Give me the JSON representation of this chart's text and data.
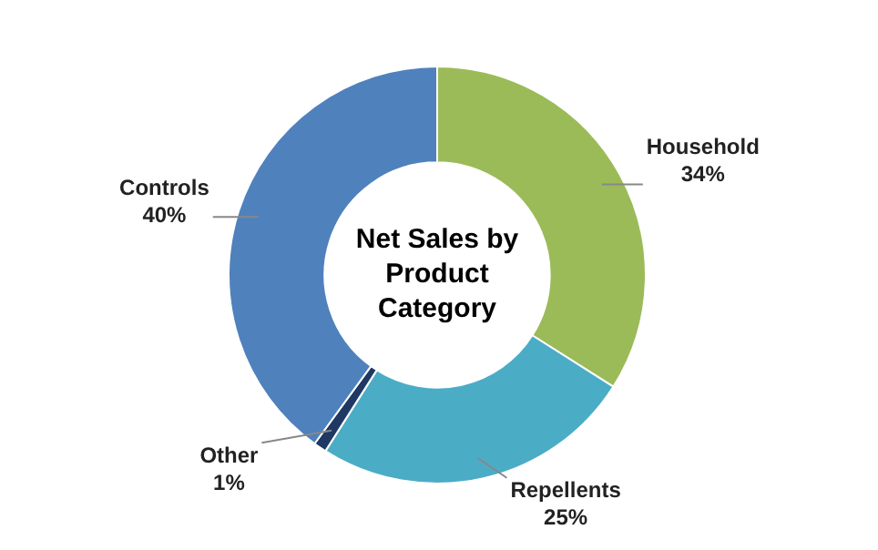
{
  "chart_data": {
    "type": "donut",
    "title": "Net Sales by Product Category",
    "categories": [
      "Household",
      "Repellents",
      "Other",
      "Controls"
    ],
    "values": [
      34,
      25,
      1,
      40
    ],
    "colors": [
      "#9bbb59",
      "#4bacc6",
      "#1f3864",
      "#4f81bd"
    ],
    "value_labels": [
      "34%",
      "25%",
      "1%",
      "40%"
    ]
  }
}
